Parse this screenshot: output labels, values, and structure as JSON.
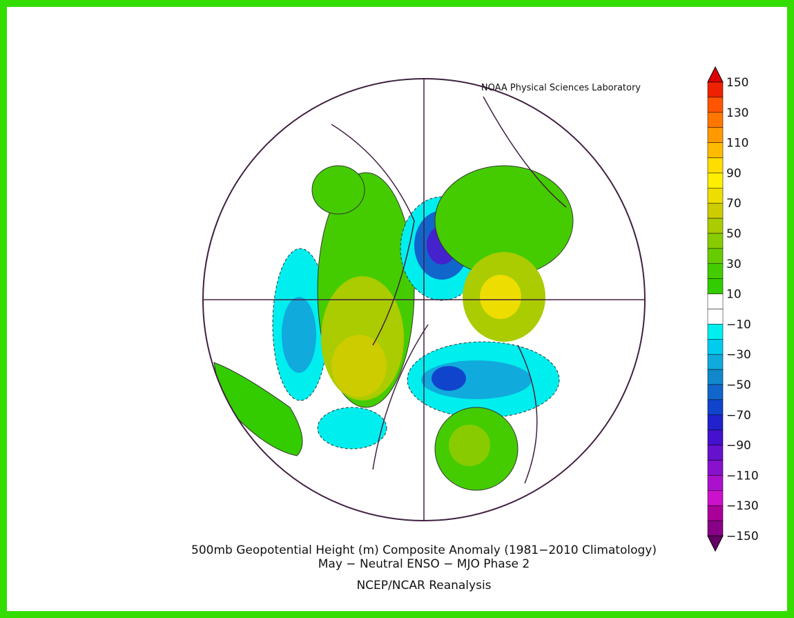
{
  "credit": "NOAA Physical Sciences Laboratory",
  "title": "500mb Geopotential Height (m) Composite Anomaly (1981−2010 Climatology)",
  "subtitle": "May − Neutral ENSO − MJO Phase 2",
  "source": "NCEP/NCAR Reanalysis",
  "colorbar": {
    "labels": [
      "150",
      "130",
      "110",
      "90",
      "70",
      "50",
      "30",
      "10",
      "−10",
      "−30",
      "−50",
      "−70",
      "−90",
      "−110",
      "−130",
      "−150"
    ]
  }
}
